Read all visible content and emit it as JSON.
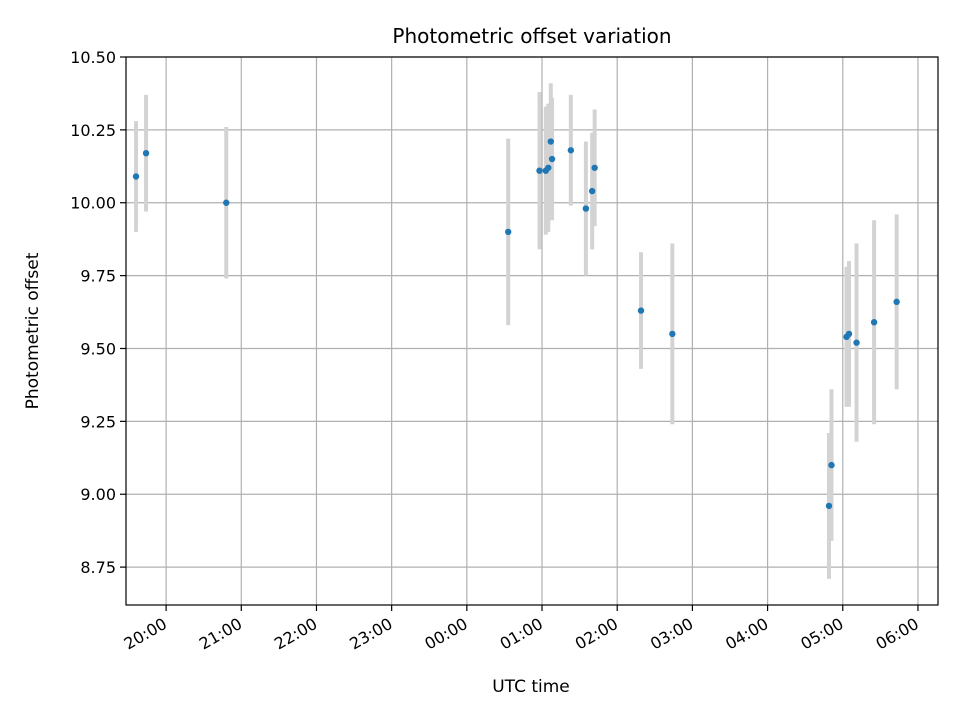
{
  "chart_data": {
    "type": "scatter",
    "title": "Photometric offset variation",
    "xlabel": "UTC time",
    "ylabel": "Photometric offset",
    "x_ticks": [
      "20:00",
      "21:00",
      "22:00",
      "23:00",
      "00:00",
      "01:00",
      "02:00",
      "03:00",
      "04:00",
      "05:00",
      "06:00"
    ],
    "y_ticks": [
      "8.75",
      "9.00",
      "9.25",
      "9.50",
      "9.75",
      "10.00",
      "10.25",
      "10.50"
    ],
    "xlim": [
      "19:28",
      "06:16"
    ],
    "ylim": [
      8.62,
      10.5
    ],
    "grid": true,
    "colors": {
      "point": "#1f77b4",
      "errorbar": "#d3d3d3",
      "grid": "#b0b0b0"
    },
    "points": [
      {
        "time": "19:36",
        "y": 10.09,
        "yerr": 0.19
      },
      {
        "time": "19:44",
        "y": 10.17,
        "yerr": 0.2
      },
      {
        "time": "20:48",
        "y": 10.0,
        "yerr": 0.26
      },
      {
        "time": "00:33",
        "y": 9.9,
        "yerr": 0.32
      },
      {
        "time": "00:58",
        "y": 10.11,
        "yerr": 0.27
      },
      {
        "time": "01:03",
        "y": 10.11,
        "yerr": 0.22
      },
      {
        "time": "01:05",
        "y": 10.12,
        "yerr": 0.22
      },
      {
        "time": "01:07",
        "y": 10.21,
        "yerr": 0.2
      },
      {
        "time": "01:08",
        "y": 10.15,
        "yerr": 0.21
      },
      {
        "time": "01:23",
        "y": 10.18,
        "yerr": 0.19
      },
      {
        "time": "01:35",
        "y": 9.98,
        "yerr": 0.23
      },
      {
        "time": "01:40",
        "y": 10.04,
        "yerr": 0.2
      },
      {
        "time": "01:42",
        "y": 10.12,
        "yerr": 0.2
      },
      {
        "time": "02:19",
        "y": 9.63,
        "yerr": 0.2
      },
      {
        "time": "02:44",
        "y": 9.55,
        "yerr": 0.31
      },
      {
        "time": "04:49",
        "y": 8.96,
        "yerr": 0.25
      },
      {
        "time": "04:51",
        "y": 9.1,
        "yerr": 0.26
      },
      {
        "time": "05:03",
        "y": 9.54,
        "yerr": 0.24
      },
      {
        "time": "05:05",
        "y": 9.55,
        "yerr": 0.25
      },
      {
        "time": "05:11",
        "y": 9.52,
        "yerr": 0.34
      },
      {
        "time": "05:25",
        "y": 9.59,
        "yerr": 0.35
      },
      {
        "time": "05:43",
        "y": 9.66,
        "yerr": 0.3
      }
    ]
  }
}
